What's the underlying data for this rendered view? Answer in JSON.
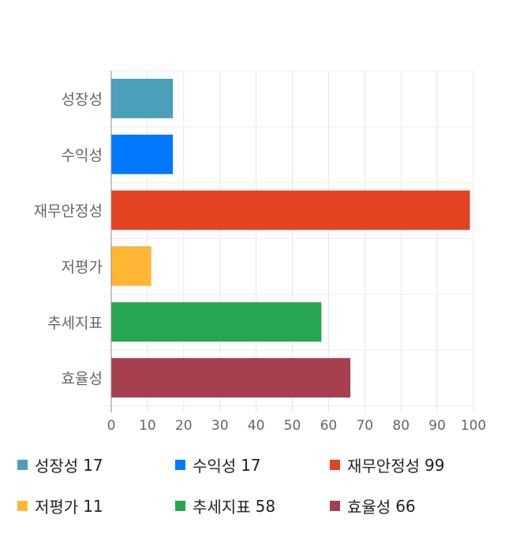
{
  "chart_data": {
    "type": "bar",
    "orientation": "horizontal",
    "categories": [
      "성장성",
      "수익성",
      "재무안정성",
      "저평가",
      "추세지표",
      "효율성"
    ],
    "values": [
      17,
      17,
      99,
      11,
      58,
      66
    ],
    "colors": [
      "#4aa0b8",
      "#0077ff",
      "#e24422",
      "#ffb733",
      "#27a652",
      "#a6404e"
    ],
    "xlim": [
      0,
      100
    ],
    "xticks": [
      "0",
      "10",
      "20",
      "30",
      "40",
      "50",
      "60",
      "70",
      "80",
      "90",
      "100"
    ],
    "grid": true,
    "legend_position": "bottom",
    "title": "",
    "xlabel": "",
    "ylabel": ""
  },
  "legend": [
    {
      "label": "성장성",
      "value": "17"
    },
    {
      "label": "수익성",
      "value": "17"
    },
    {
      "label": "재무안정성",
      "value": "99"
    },
    {
      "label": "저평가",
      "value": "11"
    },
    {
      "label": "추세지표",
      "value": "58"
    },
    {
      "label": "효율성",
      "value": "66"
    }
  ]
}
